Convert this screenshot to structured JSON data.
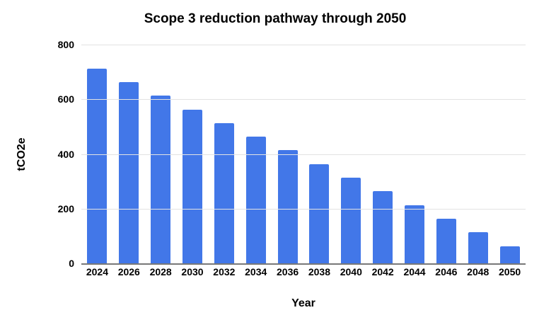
{
  "figure": {
    "title": "Scope 3 reduction pathway through 2050",
    "x_axis_title": "Year",
    "y_axis_title": "tCO2e"
  },
  "chart_data": {
    "type": "bar",
    "title": "Scope 3 reduction pathway through 2050",
    "xlabel": "Year",
    "ylabel": "tCO2e",
    "categories": [
      "2024",
      "2026",
      "2028",
      "2030",
      "2032",
      "2034",
      "2036",
      "2038",
      "2040",
      "2042",
      "2044",
      "2046",
      "2048",
      "2050"
    ],
    "values": [
      713,
      663,
      613,
      563,
      513,
      463,
      413,
      363,
      313,
      263,
      213,
      163,
      113,
      63
    ],
    "ylim": [
      0,
      800
    ],
    "yticks": [
      0,
      200,
      400,
      600,
      800
    ],
    "grid": "horizontal",
    "legend": "none",
    "colors": {
      "bar": "#4277E8",
      "gridline": "#e3e3e3",
      "axis_line": "#787878",
      "text": "#000000",
      "background": "#ffffff"
    }
  }
}
